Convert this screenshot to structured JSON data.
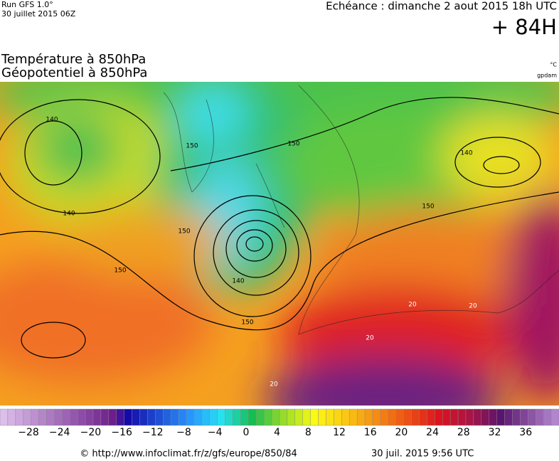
{
  "header": {
    "run": "Run GFS 1.0°",
    "run_date": "30 juillet 2015 06Z",
    "echeance": "Echéance : dimanche 2 aout 2015 18h UTC",
    "lead": "+ 84H",
    "title_temperature": "Température à 850hPa",
    "title_geopotential": "Géopotentiel à 850hPa",
    "unit_temperature": "°C",
    "unit_geopotential": "gpdam"
  },
  "map": {
    "contour_labels": [
      "140",
      "150",
      "150",
      "140",
      "140",
      "150",
      "150",
      "150",
      "140",
      "150",
      "20",
      "20",
      "20",
      "20"
    ]
  },
  "colorbar": {
    "labels": [
      "−28",
      "−24",
      "−20",
      "−16",
      "−12",
      "−8",
      "−4",
      "0",
      "4",
      "8",
      "12",
      "16",
      "20",
      "24",
      "28",
      "32",
      "36"
    ]
  },
  "footer": {
    "url": "© http://www.infoclimat.fr/z/gfs/europe/850/84",
    "timestamp": "30 juil. 2015  9:56 UTC"
  }
}
